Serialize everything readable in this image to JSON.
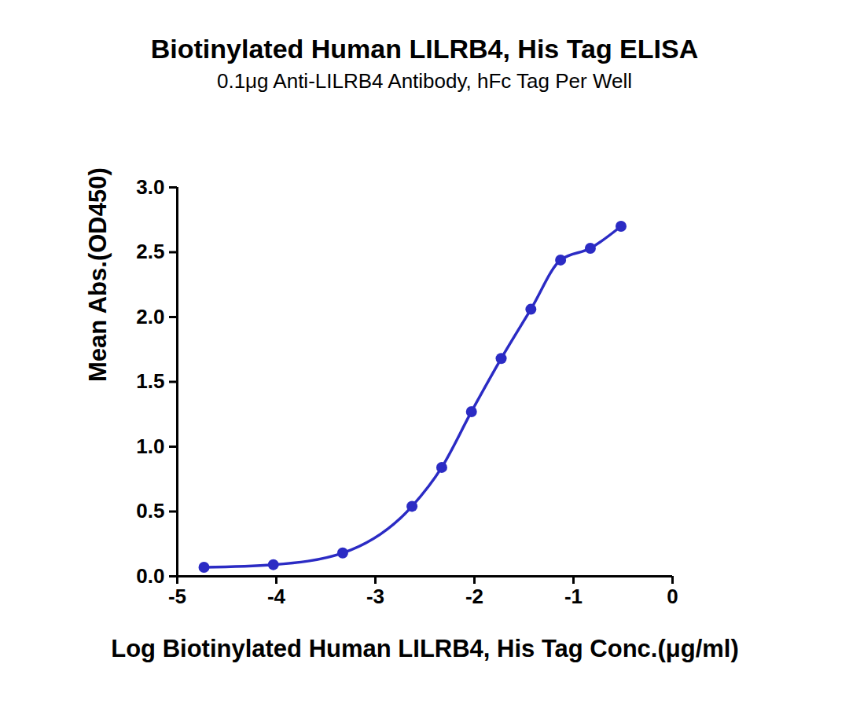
{
  "chart_data": {
    "type": "line",
    "title": "Biotinylated Human LILRB4, His Tag ELISA",
    "subtitle": "0.1μg Anti-LILRB4 Antibody, hFc Tag Per Well",
    "x_label": "Log Biotinylated Human LILRB4, His Tag Conc.(μg/ml)",
    "y_label": "Mean Abs.(OD450)",
    "x": [
      -4.73,
      -4.03,
      -3.33,
      -2.63,
      -2.33,
      -2.03,
      -1.73,
      -1.43,
      -1.13,
      -0.83,
      -0.52
    ],
    "series": [
      {
        "color": "#2b2bc4",
        "marker": "circle",
        "values": [
          0.07,
          0.09,
          0.18,
          0.54,
          0.84,
          1.27,
          1.68,
          2.06,
          2.44,
          2.53,
          2.7
        ]
      }
    ],
    "xlim": [
      -5,
      0
    ],
    "xticks": [
      -5,
      -4,
      -3,
      -2,
      -1,
      0
    ],
    "ylim": [
      0,
      3
    ],
    "yticks": [
      {
        "value": 0,
        "label": "0.0"
      },
      {
        "value": 0.5,
        "label": "0.5"
      },
      {
        "value": 1,
        "label": "1.0"
      },
      {
        "value": 1.5,
        "label": "1.5"
      },
      {
        "value": 2,
        "label": "2.0"
      },
      {
        "value": 2.5,
        "label": "2.5"
      },
      {
        "value": 3,
        "label": "3.0"
      }
    ],
    "grid": false
  }
}
